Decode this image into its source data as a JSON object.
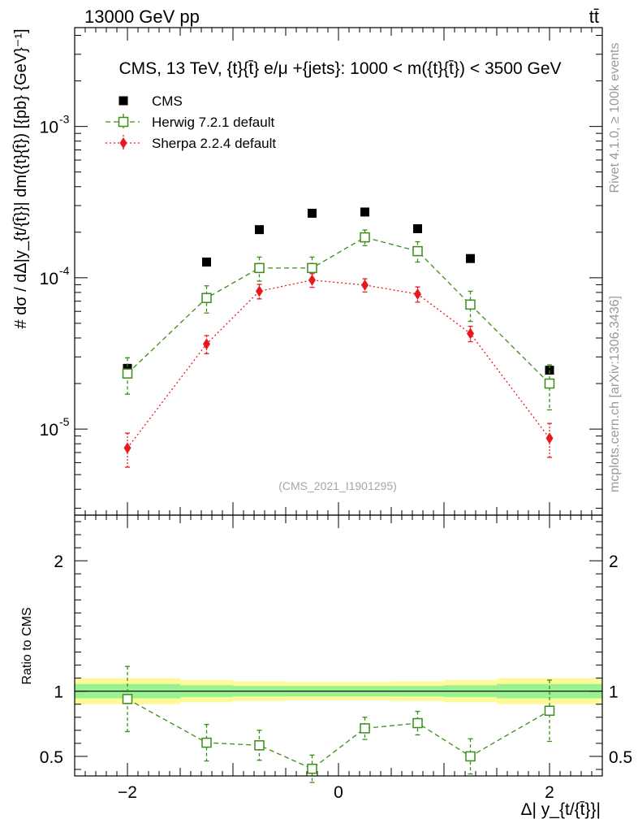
{
  "header": {
    "energy_label": "13000 GeV pp",
    "process_label": "tt̄",
    "title": "CMS, 13 TeV, {t}{t̄} e/μ +{jets}: 1000 < m({t}{t̄}) < 3500 GeV",
    "ylabel_main": "#  dσ / dΔ|y_{t/{t̄}}| dm({t}{t̄}) [{pb} {GeV}⁻¹]",
    "ylabel_ratio": "Ratio to CMS",
    "xlabel": "Δ| y_{t/{t̄}}|",
    "analysis_id": "(CMS_2021_I1901295)",
    "side_label_top": "Rivet 4.1.0, ≥ 100k events",
    "side_label_bottom": "mcplots.cern.ch [arXiv:1306.3436]"
  },
  "chart_data": [
    {
      "type": "scatter",
      "panel": "main",
      "yscale": "log",
      "xlim": [
        -2.5,
        2.5
      ],
      "ylim": [
        2.7e-06,
        0.0045
      ],
      "yticks": [
        {
          "value": 0.001,
          "label": "10",
          "exp": "-3"
        },
        {
          "value": 0.0001,
          "label": "10",
          "exp": "-4"
        },
        {
          "value": 1e-05,
          "label": "10",
          "exp": "-5"
        }
      ],
      "x": [
        -2.0,
        -1.25,
        -0.75,
        -0.25,
        0.25,
        0.75,
        1.25,
        2.0
      ],
      "bin_edges": [
        -2.5,
        -1.5,
        -1.0,
        -0.5,
        0.0,
        0.5,
        1.0,
        1.5,
        2.5
      ],
      "legend_position": "top-left",
      "series": [
        {
          "name": "CMS",
          "color": "#000000",
          "marker": "square-filled",
          "values": [
            2.52e-05,
            0.000127,
            0.000208,
            0.000267,
            0.000272,
            0.000211,
            0.000134,
            2.45e-05
          ],
          "err_up": [
            0.0,
            0.0,
            0.0,
            0.0,
            0.0,
            0.0,
            0.0,
            0.0
          ],
          "err_down": [
            0.0,
            0.0,
            0.0,
            0.0,
            0.0,
            0.0,
            0.0,
            0.0
          ]
        },
        {
          "name": "Herwig 7.2.1 default",
          "color": "#3a8e17",
          "marker": "square-open",
          "line": "dashed",
          "values": [
            2.33e-05,
            7.35e-05,
            0.000116,
            0.000116,
            0.000185,
            0.00015,
            6.65e-05,
            2e-05
          ],
          "err_up": [
            6.3e-06,
            1.5e-05,
            2.1e-05,
            2.1e-05,
            2.2e-05,
            2.3e-05,
            1.5e-05,
            6.6e-06
          ],
          "err_down": [
            6.3e-06,
            1.5e-05,
            2.1e-05,
            2.1e-05,
            2.2e-05,
            2.3e-05,
            1.5e-05,
            6.6e-06
          ]
        },
        {
          "name": "Sherpa 2.2.4 default",
          "color": "#e8191c",
          "marker": "diamond-filled",
          "line": "dotted",
          "values": [
            7.5e-06,
            3.65e-05,
            8.15e-05,
            9.65e-05,
            8.95e-05,
            7.8e-05,
            4.28e-05,
            8.7e-06
          ],
          "err_up": [
            1.9e-06,
            5e-06,
            9e-06,
            1e-05,
            9e-06,
            9e-06,
            5e-06,
            2.2e-06
          ],
          "err_down": [
            1.9e-06,
            5e-06,
            9e-06,
            1e-05,
            9e-06,
            9e-06,
            5e-06,
            2.2e-06
          ]
        }
      ]
    },
    {
      "type": "scatter",
      "panel": "ratio",
      "yscale": "linear",
      "xlim": [
        -2.5,
        2.5
      ],
      "ylim": [
        0.35,
        2.35
      ],
      "yticks": [
        {
          "value": 2,
          "label": "2"
        },
        {
          "value": 1,
          "label": "1"
        },
        {
          "value": 0.5,
          "label": "0.5"
        }
      ],
      "xticks": [
        {
          "value": -2,
          "label": "−2"
        },
        {
          "value": 0,
          "label": "0"
        },
        {
          "value": 2,
          "label": "2"
        }
      ],
      "x": [
        -2.0,
        -1.25,
        -0.75,
        -0.25,
        0.25,
        0.75,
        1.25,
        2.0
      ],
      "bin_edges": [
        -2.5,
        -1.5,
        -1.0,
        -0.5,
        0.0,
        0.5,
        1.0,
        1.5,
        2.5
      ],
      "band_inner": [
        0.055,
        0.045,
        0.04,
        0.04,
        0.04,
        0.04,
        0.045,
        0.055
      ],
      "band_outer": [
        0.1,
        0.085,
        0.075,
        0.07,
        0.07,
        0.075,
        0.085,
        0.1
      ],
      "band_inner_color": "#99f28f",
      "band_outer_color": "#fdfa99",
      "series": [
        {
          "name": "Herwig 7.2.1 default",
          "color": "#3a8e17",
          "marker": "square-open",
          "line": "dashed",
          "values": [
            0.94,
            0.605,
            0.585,
            0.405,
            0.715,
            0.755,
            0.5,
            0.85
          ],
          "err_up": [
            0.25,
            0.14,
            0.115,
            0.105,
            0.085,
            0.09,
            0.135,
            0.235
          ],
          "err_down": [
            0.25,
            0.14,
            0.115,
            0.105,
            0.085,
            0.09,
            0.135,
            0.235
          ]
        }
      ]
    }
  ]
}
